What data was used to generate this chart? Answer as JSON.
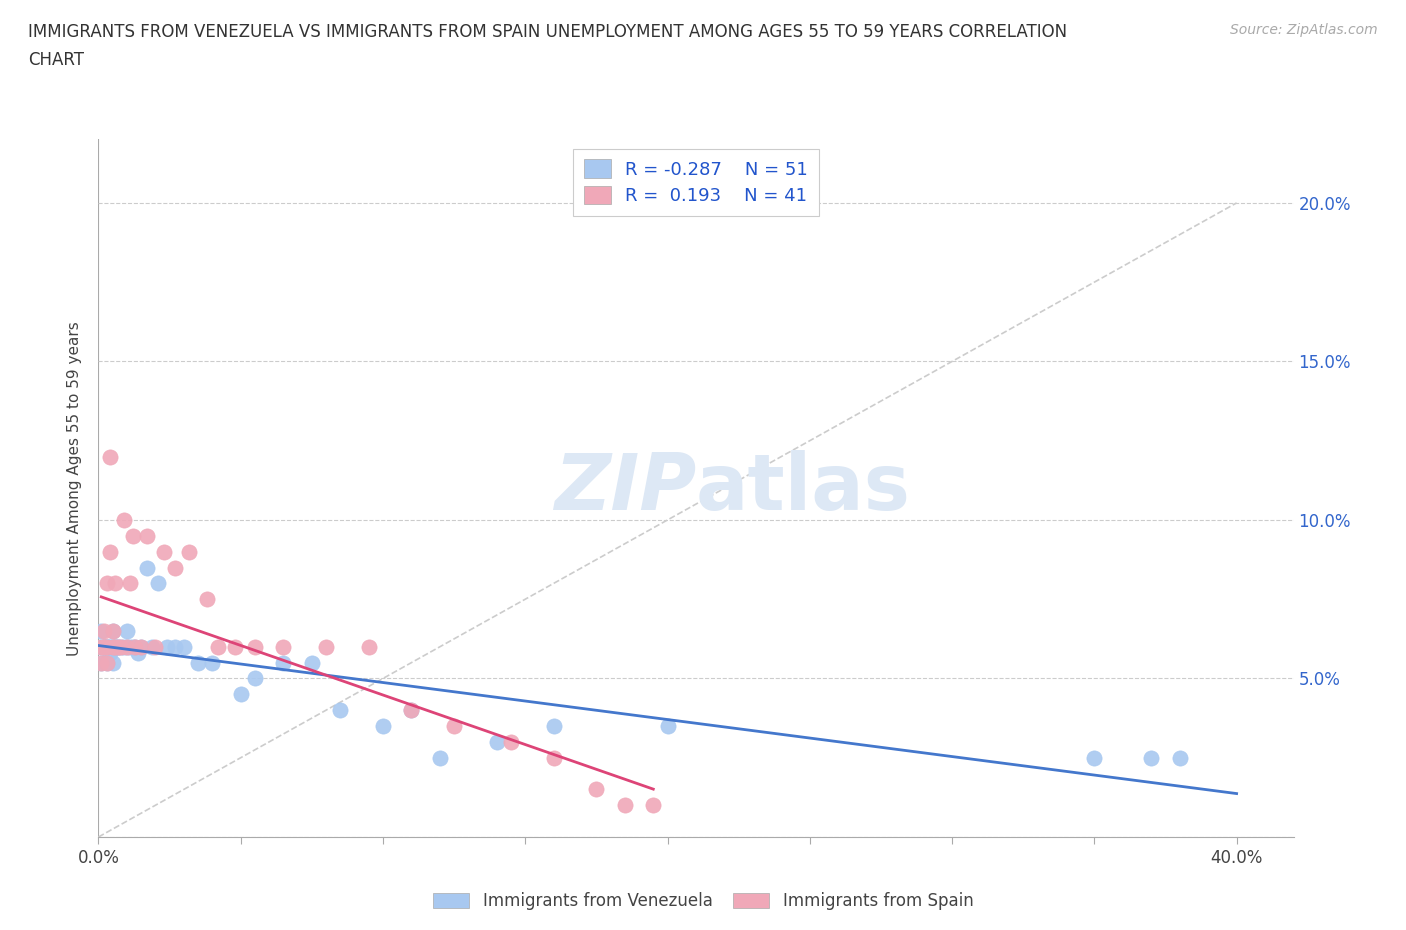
{
  "title_line1": "IMMIGRANTS FROM VENEZUELA VS IMMIGRANTS FROM SPAIN UNEMPLOYMENT AMONG AGES 55 TO 59 YEARS CORRELATION",
  "title_line2": "CHART",
  "source_text": "Source: ZipAtlas.com",
  "ylabel": "Unemployment Among Ages 55 to 59 years",
  "xlim": [
    0.0,
    0.42
  ],
  "ylim": [
    0.0,
    0.22
  ],
  "color_venezuela": "#a8c8f0",
  "color_spain": "#f0a8b8",
  "trendline_color_venezuela": "#4477cc",
  "trendline_color_spain": "#dd4477",
  "watermark_color": "#dde8f5",
  "background_color": "#ffffff",
  "legend_text_color": "#2255cc",
  "right_tick_color": "#3366cc",
  "venezuela_x": [
    0.001,
    0.001,
    0.001,
    0.002,
    0.002,
    0.002,
    0.003,
    0.003,
    0.003,
    0.003,
    0.004,
    0.004,
    0.004,
    0.005,
    0.005,
    0.005,
    0.006,
    0.006,
    0.007,
    0.007,
    0.008,
    0.009,
    0.01,
    0.01,
    0.011,
    0.012,
    0.013,
    0.014,
    0.015,
    0.017,
    0.019,
    0.021,
    0.024,
    0.027,
    0.03,
    0.035,
    0.04,
    0.05,
    0.055,
    0.065,
    0.075,
    0.085,
    0.1,
    0.11,
    0.12,
    0.14,
    0.16,
    0.2,
    0.35,
    0.37,
    0.38
  ],
  "venezuela_y": [
    0.06,
    0.065,
    0.055,
    0.06,
    0.06,
    0.06,
    0.06,
    0.06,
    0.055,
    0.06,
    0.06,
    0.058,
    0.06,
    0.06,
    0.055,
    0.065,
    0.06,
    0.06,
    0.06,
    0.06,
    0.06,
    0.06,
    0.065,
    0.06,
    0.06,
    0.06,
    0.06,
    0.058,
    0.06,
    0.085,
    0.06,
    0.08,
    0.06,
    0.06,
    0.06,
    0.055,
    0.055,
    0.045,
    0.05,
    0.055,
    0.055,
    0.04,
    0.035,
    0.04,
    0.025,
    0.03,
    0.035,
    0.035,
    0.025,
    0.025,
    0.025
  ],
  "spain_x": [
    0.001,
    0.001,
    0.002,
    0.002,
    0.002,
    0.003,
    0.003,
    0.003,
    0.004,
    0.004,
    0.005,
    0.005,
    0.006,
    0.006,
    0.007,
    0.008,
    0.009,
    0.01,
    0.011,
    0.012,
    0.013,
    0.015,
    0.017,
    0.02,
    0.023,
    0.027,
    0.032,
    0.038,
    0.042,
    0.048,
    0.055,
    0.065,
    0.08,
    0.095,
    0.11,
    0.125,
    0.145,
    0.16,
    0.175,
    0.185,
    0.195
  ],
  "spain_y": [
    0.06,
    0.055,
    0.06,
    0.065,
    0.06,
    0.055,
    0.08,
    0.06,
    0.12,
    0.09,
    0.065,
    0.06,
    0.08,
    0.06,
    0.06,
    0.06,
    0.1,
    0.06,
    0.08,
    0.095,
    0.06,
    0.06,
    0.095,
    0.06,
    0.09,
    0.085,
    0.09,
    0.075,
    0.06,
    0.06,
    0.06,
    0.06,
    0.06,
    0.06,
    0.04,
    0.035,
    0.03,
    0.025,
    0.015,
    0.01,
    0.01
  ]
}
